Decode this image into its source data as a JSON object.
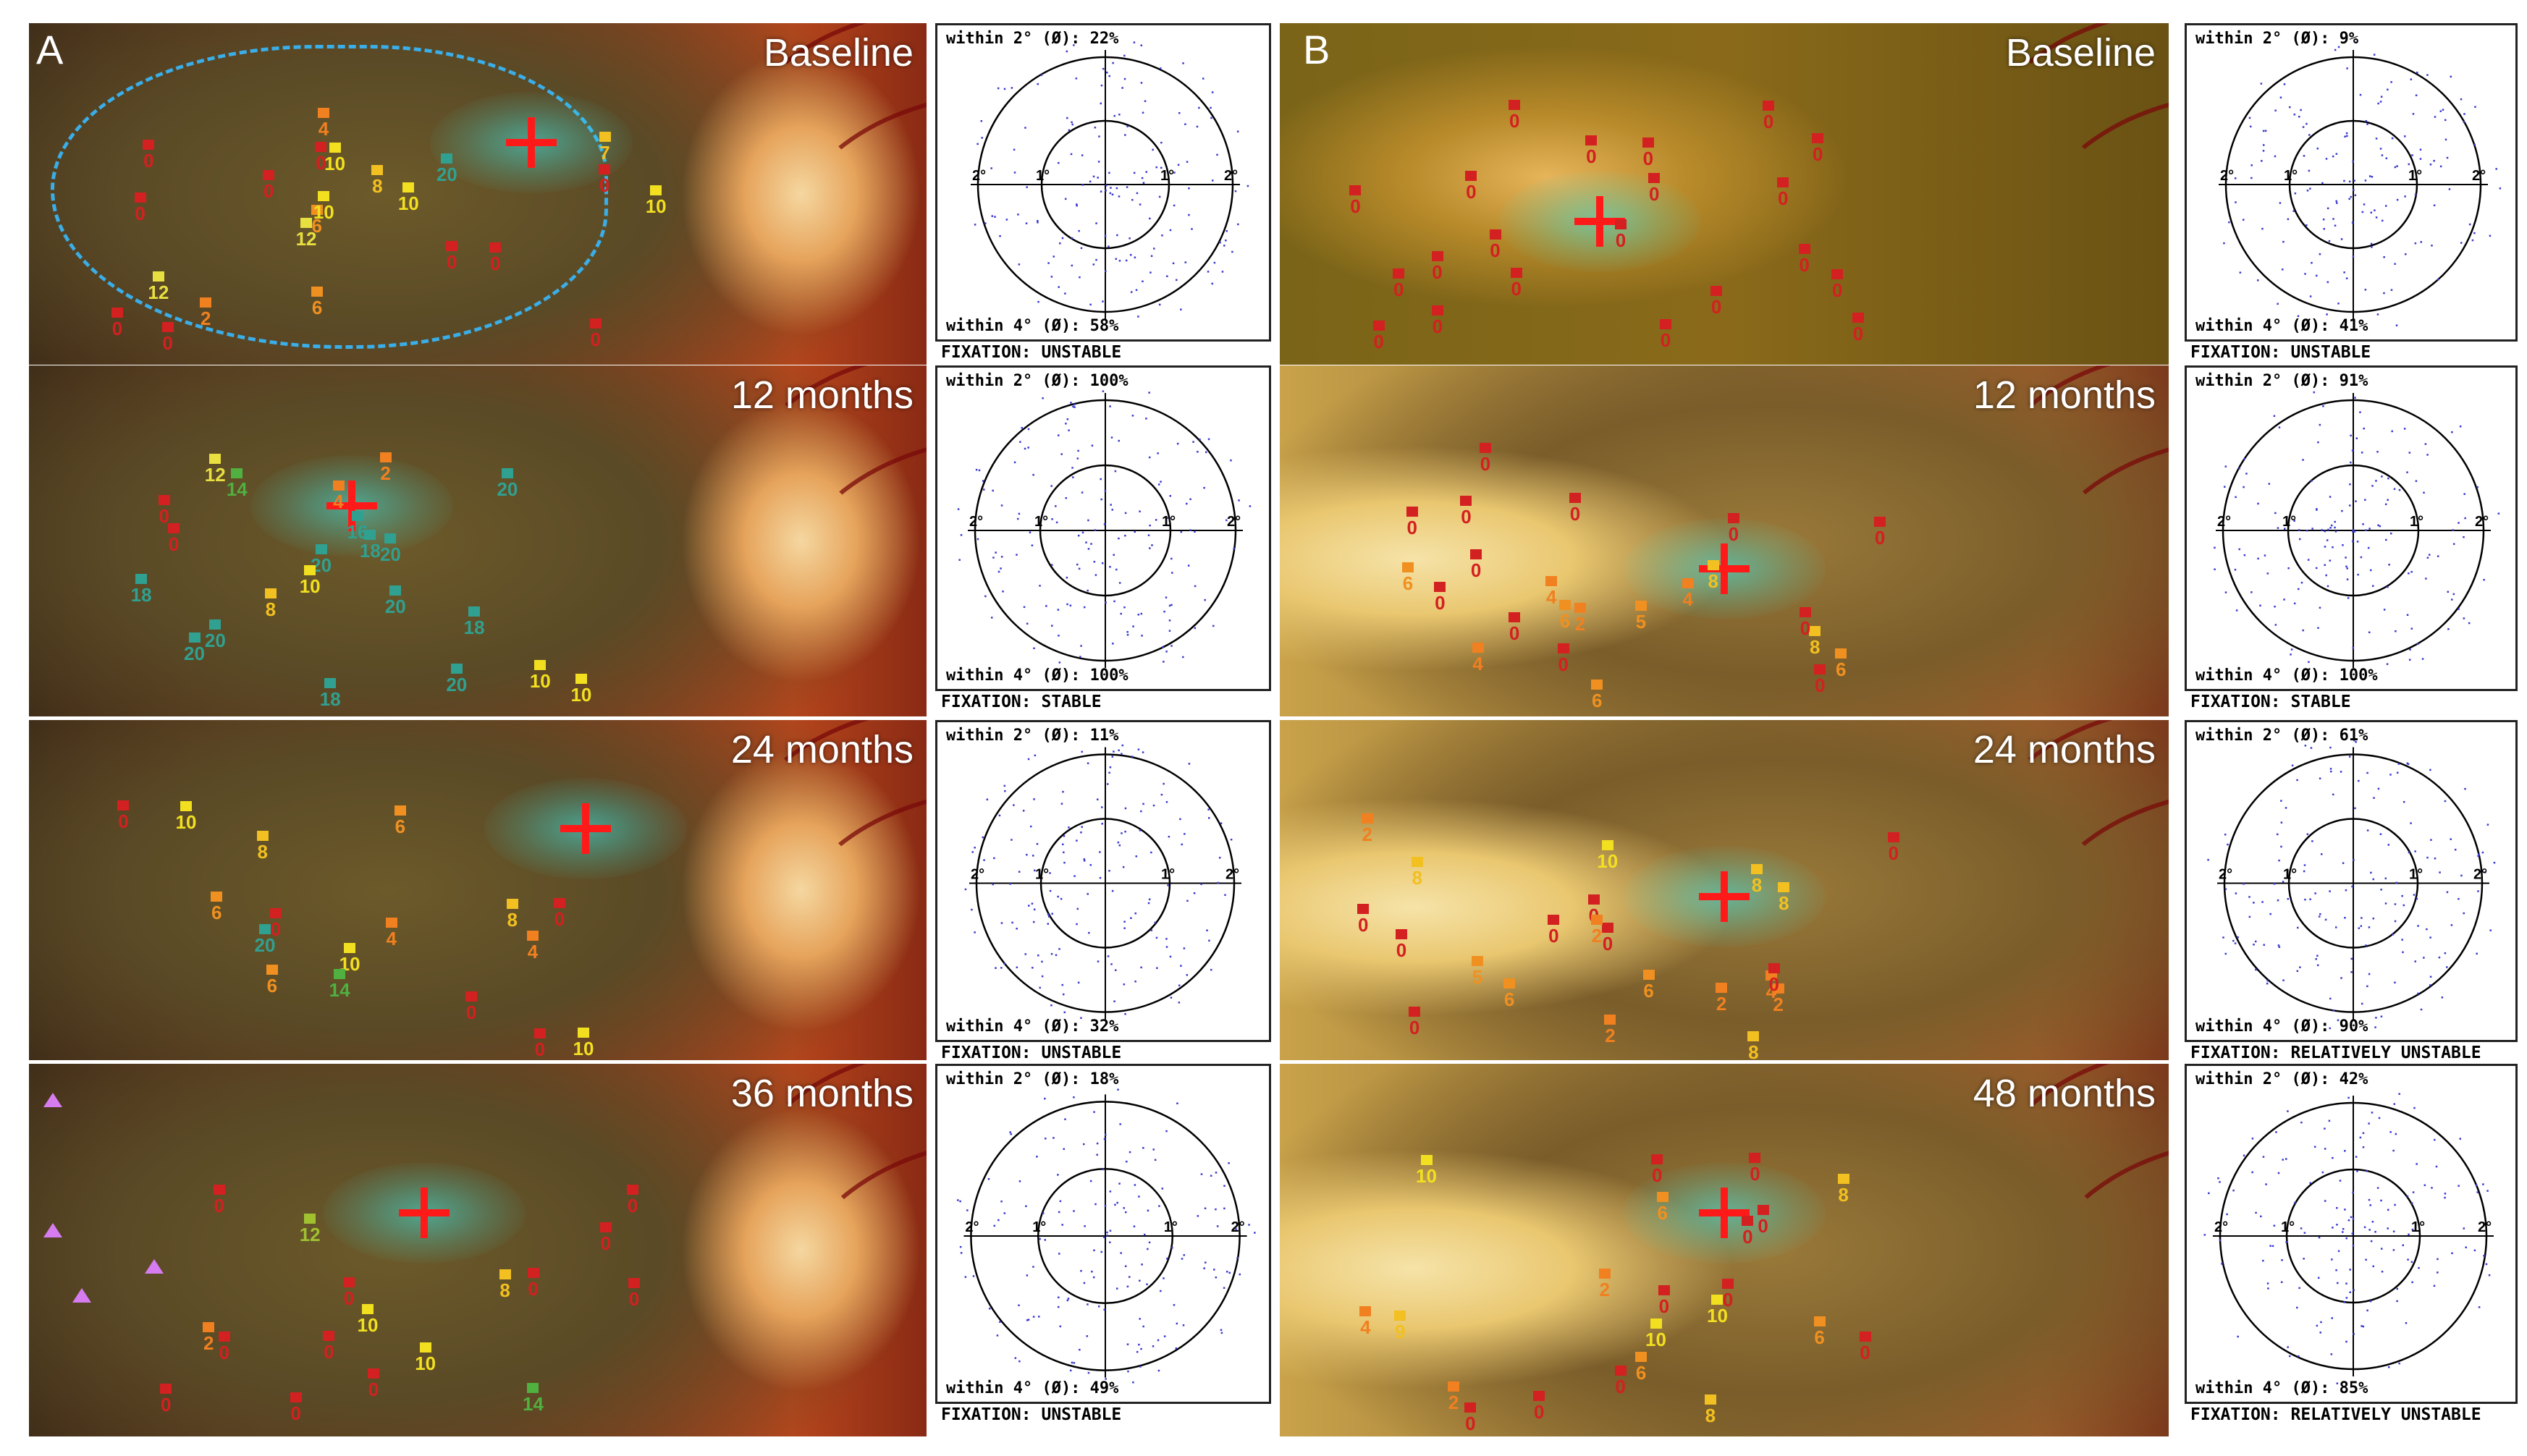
{
  "panels": [
    {
      "letter": "A",
      "rows": [
        {
          "label": "Baseline",
          "plot": {
            "top": "within 2° (Ø): 22%",
            "bottom": "within 4° (Ø): 58%",
            "fixation": "FIXATION: UNSTABLE"
          },
          "stimuli": [
            [
              "0",
              "#d32020"
            ],
            [
              "0",
              "#d32020"
            ],
            [
              "7",
              "#f2c020"
            ],
            [
              "12",
              "#e8e040"
            ],
            [
              "20",
              "#30a090"
            ],
            [
              "0",
              "#d32020"
            ],
            [
              "0",
              "#d32020"
            ],
            [
              "8",
              "#f2c020"
            ],
            [
              "12",
              "#e8e040"
            ],
            [
              "0",
              "#d32020"
            ],
            [
              "0",
              "#d32020"
            ],
            [
              "2",
              "#f08020"
            ],
            [
              "10",
              "#f2e020"
            ],
            [
              "10",
              "#f2e020"
            ],
            [
              "0",
              "#d32020"
            ],
            [
              "0",
              "#d32020"
            ],
            [
              "4",
              "#f08020"
            ],
            [
              "10",
              "#f2e020"
            ],
            [
              "0",
              "#d32020"
            ],
            [
              "0",
              "#d32020"
            ],
            [
              "6",
              "#f09020"
            ],
            [
              "6",
              "#f09020"
            ],
            [
              "10",
              "#f2e020"
            ]
          ]
        },
        {
          "label": "12 months",
          "plot": {
            "top": "within 2° (Ø): 100%",
            "bottom": "within 4° (Ø): 100%",
            "fixation": "FIXATION: STABLE"
          },
          "stimuli": [
            [
              "20",
              "#30a090"
            ],
            [
              "20",
              "#30a090"
            ],
            [
              "20",
              "#30a090"
            ],
            [
              "18",
              "#30a090"
            ],
            [
              "14",
              "#50b040"
            ],
            [
              "12",
              "#e8e040"
            ],
            [
              "18",
              "#30a090"
            ],
            [
              "20",
              "#30a090"
            ],
            [
              "20",
              "#30a090"
            ],
            [
              "20",
              "#30a090"
            ],
            [
              "4",
              "#f08020"
            ],
            [
              "10",
              "#f2e020"
            ],
            [
              "20",
              "#30a090"
            ],
            [
              "18",
              "#30a090"
            ],
            [
              "2",
              "#f08020"
            ],
            [
              "10",
              "#f2e020"
            ],
            [
              "16",
              "#30a090"
            ],
            [
              "18",
              "#30a090"
            ],
            [
              "10",
              "#f2e020"
            ],
            [
              "0",
              "#d32020"
            ],
            [
              "0",
              "#d32020"
            ],
            [
              "8",
              "#f2c020"
            ]
          ]
        },
        {
          "label": "24 months",
          "plot": {
            "top": "within 2° (Ø): 11%",
            "bottom": "within 4° (Ø): 32%",
            "fixation": "FIXATION: UNSTABLE"
          },
          "stimuli": [
            [
              "10",
              "#f2e020"
            ],
            [
              "6",
              "#f09020"
            ],
            [
              "10",
              "#f2e020"
            ],
            [
              "4",
              "#f08020"
            ],
            [
              "10",
              "#f2e020"
            ],
            [
              "8",
              "#f2c020"
            ],
            [
              "14",
              "#50b040"
            ],
            [
              "20",
              "#30a090"
            ],
            [
              "6",
              "#f09020"
            ],
            [
              "8",
              "#f2c020"
            ],
            [
              "0",
              "#d32020"
            ],
            [
              "6",
              "#f09020"
            ],
            [
              "0",
              "#d32020"
            ],
            [
              "0",
              "#d32020"
            ],
            [
              "0",
              "#d32020"
            ],
            [
              "0",
              "#d32020"
            ],
            [
              "4",
              "#f08020"
            ]
          ]
        },
        {
          "label": "36 months",
          "plot": {
            "top": "within 2° (Ø): 18%",
            "bottom": "within 4° (Ø): 49%",
            "fixation": "FIXATION: UNSTABLE"
          },
          "stimuli": [
            [
              "8",
              "#f2c020"
            ],
            [
              "14",
              "#50b040"
            ],
            [
              "0",
              "#d32020"
            ],
            [
              "10",
              "#f2e020"
            ],
            [
              "0",
              "#d32020"
            ],
            [
              "12",
              "#a0c030"
            ],
            [
              "0",
              "#d32020"
            ],
            [
              "2",
              "#f08020"
            ],
            [
              "0",
              "#d32020"
            ],
            [
              "0",
              "#d32020"
            ],
            [
              "0",
              "#d32020"
            ],
            [
              "0",
              "#d32020"
            ],
            [
              "0",
              "#d32020"
            ],
            [
              "0",
              "#d32020"
            ],
            [
              "0",
              "#d32020"
            ],
            [
              "0",
              "#d32020"
            ],
            [
              "10",
              "#f2e020"
            ]
          ]
        }
      ]
    },
    {
      "letter": "B",
      "rows": [
        {
          "label": "Baseline",
          "plot": {
            "top": "within 2° (Ø): 9%",
            "bottom": "within 4° (Ø): 41%",
            "fixation": "FIXATION: UNSTABLE"
          },
          "stimuli": [
            [
              "0",
              "#d32020"
            ],
            [
              "0",
              "#d32020"
            ],
            [
              "0",
              "#d32020"
            ],
            [
              "0",
              "#d32020"
            ],
            [
              "0",
              "#d32020"
            ],
            [
              "0",
              "#d32020"
            ],
            [
              "0",
              "#d32020"
            ],
            [
              "0",
              "#d32020"
            ],
            [
              "0",
              "#d32020"
            ],
            [
              "0",
              "#d32020"
            ],
            [
              "0",
              "#d32020"
            ],
            [
              "0",
              "#d32020"
            ],
            [
              "0",
              "#d32020"
            ],
            [
              "0",
              "#d32020"
            ],
            [
              "0",
              "#d32020"
            ],
            [
              "0",
              "#d32020"
            ],
            [
              "0",
              "#d32020"
            ],
            [
              "0",
              "#d32020"
            ],
            [
              "0",
              "#d32020"
            ],
            [
              "0",
              "#d32020"
            ],
            [
              "0",
              "#d32020"
            ]
          ]
        },
        {
          "label": "12 months",
          "plot": {
            "top": "within 2° (Ø): 91%",
            "bottom": "within 4° (Ø): 100%",
            "fixation": "FIXATION: STABLE"
          },
          "stimuli": [
            [
              "0",
              "#d32020"
            ],
            [
              "2",
              "#f08020"
            ],
            [
              "8",
              "#f2c020"
            ],
            [
              "5",
              "#f09020"
            ],
            [
              "0",
              "#d32020"
            ],
            [
              "0",
              "#d32020"
            ],
            [
              "6",
              "#f09020"
            ],
            [
              "6",
              "#f09020"
            ],
            [
              "4",
              "#f08020"
            ],
            [
              "0",
              "#d32020"
            ],
            [
              "0",
              "#d32020"
            ],
            [
              "0",
              "#d32020"
            ],
            [
              "4",
              "#f08020"
            ],
            [
              "8",
              "#f2c020"
            ],
            [
              "0",
              "#d32020"
            ],
            [
              "6",
              "#f09020"
            ],
            [
              "4",
              "#f08020"
            ],
            [
              "0",
              "#d32020"
            ],
            [
              "0",
              "#d32020"
            ],
            [
              "6",
              "#f09020"
            ],
            [
              "0",
              "#d32020"
            ],
            [
              "0",
              "#d32020"
            ],
            [
              "0",
              "#d32020"
            ]
          ]
        },
        {
          "label": "24 months",
          "plot": {
            "top": "within 2° (Ø): 61%",
            "bottom": "within 4° (Ø): 90%",
            "fixation": "FIXATION: RELATIVELY UNSTABLE"
          },
          "stimuli": [
            [
              "0",
              "#d32020"
            ],
            [
              "0",
              "#d32020"
            ],
            [
              "10",
              "#f2e020"
            ],
            [
              "5",
              "#f09020"
            ],
            [
              "2",
              "#f08020"
            ],
            [
              "2",
              "#f08020"
            ],
            [
              "8",
              "#f2c020"
            ],
            [
              "6",
              "#f09020"
            ],
            [
              "0",
              "#d32020"
            ],
            [
              "2",
              "#f08020"
            ],
            [
              "0",
              "#d32020"
            ],
            [
              "8",
              "#f2c020"
            ],
            [
              "6",
              "#f09020"
            ],
            [
              "2",
              "#f08020"
            ],
            [
              "4",
              "#f08020"
            ],
            [
              "8",
              "#f2c020"
            ],
            [
              "2",
              "#f08020"
            ],
            [
              "8",
              "#f2c020"
            ],
            [
              "0",
              "#d32020"
            ],
            [
              "0",
              "#d32020"
            ],
            [
              "0",
              "#d32020"
            ],
            [
              "0",
              "#d32020"
            ]
          ]
        },
        {
          "label": "48 months",
          "plot": {
            "top": "within 2° (Ø): 42%",
            "bottom": "within 4° (Ø): 85%",
            "fixation": "FIXATION: RELATIVELY UNSTABLE"
          },
          "stimuli": [
            [
              "0",
              "#d32020"
            ],
            [
              "10",
              "#f2e020"
            ],
            [
              "9",
              "#f2c020"
            ],
            [
              "0",
              "#d32020"
            ],
            [
              "8",
              "#f2c020"
            ],
            [
              "0",
              "#d32020"
            ],
            [
              "10",
              "#f2e020"
            ],
            [
              "2",
              "#f08020"
            ],
            [
              "0",
              "#d32020"
            ],
            [
              "10",
              "#f2e020"
            ],
            [
              "0",
              "#d32020"
            ],
            [
              "2",
              "#f08020"
            ],
            [
              "6",
              "#f09020"
            ],
            [
              "8",
              "#f2c020"
            ],
            [
              "6",
              "#f09020"
            ],
            [
              "4",
              "#f08020"
            ],
            [
              "0",
              "#d32020"
            ],
            [
              "0",
              "#d32020"
            ],
            [
              "6",
              "#f09020"
            ],
            [
              "0",
              "#d32020"
            ],
            [
              "0",
              "#d32020"
            ],
            [
              "0",
              "#d32020"
            ]
          ]
        }
      ]
    }
  ],
  "degree_labels": [
    "2°",
    "1°",
    "1°",
    "2°"
  ]
}
